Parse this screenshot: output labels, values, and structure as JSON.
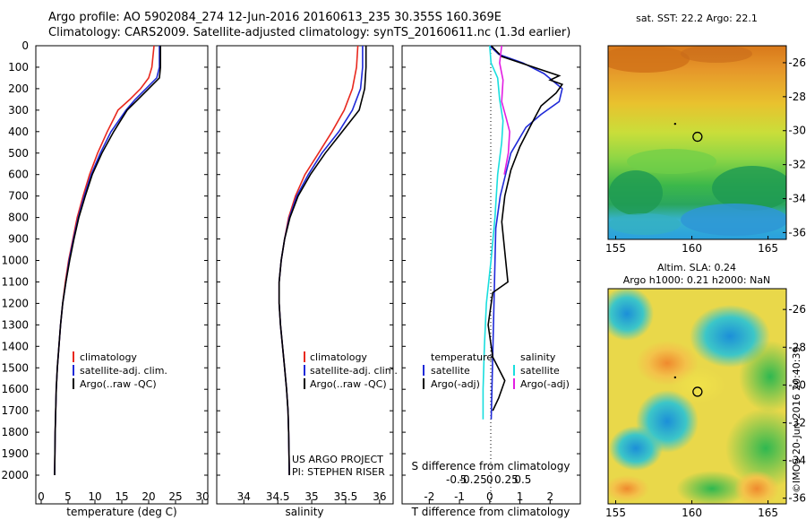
{
  "header": {
    "line1": "Argo profile: AO 5902084_274 12-Jun-2016 20160613_235 30.355S 160.369E",
    "line2": "Climatology: CARS2009. Satellite-adjusted climatology: synTS_20160611.nc (1.3d earlier)"
  },
  "colors": {
    "climatology": "#e8281e",
    "satellite": "#1f2ad8",
    "argo": "#000000",
    "sat_salinity": "#19dede",
    "argo_salinity": "#e21ee2"
  },
  "chart_data": [
    {
      "type": "line",
      "id": "temperature",
      "xlabel": "temperature (deg C)",
      "xlim": [
        -1,
        31
      ],
      "xticks": [
        0,
        5,
        10,
        15,
        20,
        25,
        30
      ],
      "ylim": [
        2000,
        0
      ],
      "yticks": [
        0,
        100,
        200,
        300,
        400,
        500,
        600,
        700,
        800,
        900,
        1000,
        1100,
        1200,
        1300,
        1400,
        1500,
        1600,
        1700,
        1800,
        1900,
        2000
      ],
      "series": [
        {
          "name": "climatology",
          "color": "#e8281e",
          "x": [
            21.0,
            20.6,
            20.0,
            18.5,
            16.5,
            14.3,
            12.3,
            10.5,
            9.0,
            7.8,
            6.7,
            5.9,
            5.1,
            4.5,
            4.0,
            3.6,
            3.3,
            3.0,
            2.8,
            2.6,
            2.5
          ],
          "y": [
            0,
            100,
            150,
            200,
            250,
            300,
            400,
            500,
            600,
            700,
            800,
            900,
            1000,
            1100,
            1200,
            1300,
            1400,
            1500,
            1600,
            1800,
            2000
          ]
        },
        {
          "name": "satellite-adj. clim.",
          "color": "#1f2ad8",
          "x": [
            22.0,
            22.0,
            21.5,
            19.5,
            17.5,
            15.8,
            13.0,
            11.0,
            9.3,
            8.0,
            6.9,
            6.0,
            5.2,
            4.6,
            4.0,
            3.6,
            3.3,
            3.0,
            2.8,
            2.6,
            2.5
          ],
          "y": [
            0,
            100,
            150,
            200,
            250,
            300,
            400,
            500,
            600,
            700,
            800,
            900,
            1000,
            1100,
            1200,
            1300,
            1400,
            1500,
            1600,
            1800,
            2000
          ]
        },
        {
          "name": "Argo(..raw -QC)",
          "color": "#000000",
          "x": [
            22.2,
            22.2,
            22.0,
            20.0,
            18.0,
            16.0,
            13.5,
            11.3,
            9.5,
            8.2,
            7.0,
            6.1,
            5.3,
            4.6,
            4.0,
            3.6,
            3.3,
            3.0,
            2.8,
            2.6,
            2.5
          ],
          "y": [
            0,
            100,
            150,
            200,
            250,
            300,
            400,
            500,
            600,
            700,
            800,
            900,
            1000,
            1100,
            1200,
            1300,
            1400,
            1500,
            1600,
            1800,
            2000
          ]
        }
      ],
      "legend": [
        "climatology",
        "satellite-adj. clim.",
        "Argo(..raw -QC)"
      ]
    },
    {
      "type": "line",
      "id": "salinity",
      "xlabel": "salinity",
      "xlim": [
        33.6,
        36.2
      ],
      "xticks": [
        34,
        34.5,
        35,
        35.5,
        36
      ],
      "ylim": [
        2000,
        0
      ],
      "series": [
        {
          "name": "climatology",
          "color": "#e8281e",
          "x": [
            35.68,
            35.66,
            35.6,
            35.48,
            35.3,
            35.1,
            34.9,
            34.76,
            34.66,
            34.6,
            34.55,
            34.52,
            34.52,
            34.54,
            34.57,
            34.6,
            34.63,
            34.65,
            34.66,
            34.67
          ],
          "y": [
            0,
            100,
            200,
            300,
            400,
            500,
            600,
            700,
            800,
            900,
            1000,
            1100,
            1200,
            1300,
            1400,
            1500,
            1600,
            1700,
            1800,
            2000
          ]
        },
        {
          "name": "satellite-adj. clim.",
          "color": "#1f2ad8",
          "x": [
            35.75,
            35.75,
            35.72,
            35.6,
            35.4,
            35.15,
            34.95,
            34.78,
            34.67,
            34.6,
            34.55,
            34.52,
            34.52,
            34.54,
            34.57,
            34.6,
            34.63,
            34.65,
            34.66,
            34.67
          ],
          "y": [
            0,
            100,
            200,
            300,
            400,
            500,
            600,
            700,
            800,
            900,
            1000,
            1100,
            1200,
            1300,
            1400,
            1500,
            1600,
            1700,
            1800,
            2000
          ]
        },
        {
          "name": "Argo(..raw -QC)",
          "color": "#000000",
          "x": [
            35.8,
            35.8,
            35.78,
            35.7,
            35.45,
            35.2,
            34.98,
            34.8,
            34.68,
            34.6,
            34.55,
            34.52,
            34.52,
            34.54,
            34.57,
            34.6,
            34.63,
            34.65,
            34.66,
            34.67
          ],
          "y": [
            0,
            100,
            200,
            300,
            400,
            500,
            600,
            700,
            800,
            900,
            1000,
            1100,
            1200,
            1300,
            1400,
            1500,
            1600,
            1700,
            1800,
            2000
          ]
        }
      ],
      "legend": [
        "climatology",
        "satellite-adj. clim.",
        "Argo(..raw -QC)"
      ],
      "annotations": [
        "US ARGO PROJECT",
        "PI: STEPHEN RISER"
      ]
    },
    {
      "type": "line",
      "id": "difference",
      "xlabel": "T difference from climatology",
      "xlabel_top": "S difference from climatology",
      "xlim": [
        -2.9,
        3.0
      ],
      "xticks": [
        -2,
        -1,
        0,
        1,
        2
      ],
      "xticks_top": [
        -0.5,
        -0.25,
        0,
        0.25,
        0.5
      ],
      "xticks_top_labels": [
        "-0.5",
        "-0.25",
        "0",
        "0.25",
        "0.5"
      ],
      "ylim": [
        2000,
        0
      ],
      "series": [
        {
          "name": "T satellite",
          "color": "#1f2ad8",
          "x": [
            0.0,
            0.3,
            1.1,
            1.8,
            2.4,
            2.3,
            1.7,
            1.2,
            0.7,
            0.35,
            0.2,
            0.05
          ],
          "y": [
            0,
            40,
            80,
            130,
            200,
            260,
            320,
            380,
            500,
            700,
            850,
            1740
          ]
        },
        {
          "name": "T Argo(-adj)",
          "color": "#000000",
          "x": [
            0.05,
            0.4,
            2.3,
            2.0,
            2.4,
            2.2,
            1.7,
            1.4,
            1.0,
            0.7,
            0.5,
            0.4,
            0.6,
            0.1,
            -0.05,
            0.1,
            0.5,
            0.3,
            0.1
          ],
          "y": [
            0,
            50,
            140,
            160,
            180,
            220,
            280,
            360,
            470,
            580,
            700,
            820,
            1100,
            1150,
            1300,
            1450,
            1560,
            1640,
            1700
          ]
        },
        {
          "name": "S satellite",
          "color": "#19dede",
          "x": [
            0.0,
            0.02,
            0.12,
            0.15,
            0.2,
            0.18,
            0.12,
            0.08,
            0.02,
            -0.05,
            -0.08,
            -0.1,
            -0.1
          ],
          "y": [
            0,
            80,
            150,
            250,
            350,
            450,
            600,
            800,
            1000,
            1200,
            1400,
            1600,
            1740
          ]
        },
        {
          "name": "S Argo(-adj)",
          "color": "#e21ee2",
          "x": [
            0.18,
            0.15,
            0.2,
            0.18,
            0.25,
            0.3,
            0.28,
            0.22
          ],
          "y": [
            0,
            80,
            160,
            260,
            340,
            400,
            500,
            600
          ]
        }
      ],
      "legend_headers": [
        "temperature",
        "salinity"
      ],
      "legend": [
        "satellite",
        "Argo(-adj)",
        "satellite",
        "Argo(-adj)"
      ]
    }
  ],
  "sst_map": {
    "title": "sat. SST: 22.2  Argo: 22.1",
    "xticks": [
      155,
      160,
      165
    ],
    "yticks": [
      -26,
      -28,
      -30,
      -32,
      -34,
      -36
    ],
    "profile_lon": 160.37,
    "profile_lat": -30.36
  },
  "sla_map": {
    "title_line1": "Altim. SLA: 0.24",
    "title_line2": "Argo h1000: 0.21  h2000: NaN",
    "xticks": [
      155,
      160,
      165
    ],
    "yticks": [
      -26,
      -28,
      -30,
      -32,
      -34,
      -36
    ],
    "profile_lon": 160.37,
    "profile_lat": -30.36
  },
  "credit": "©IMOS 20-Jun-2016 20:40:39"
}
